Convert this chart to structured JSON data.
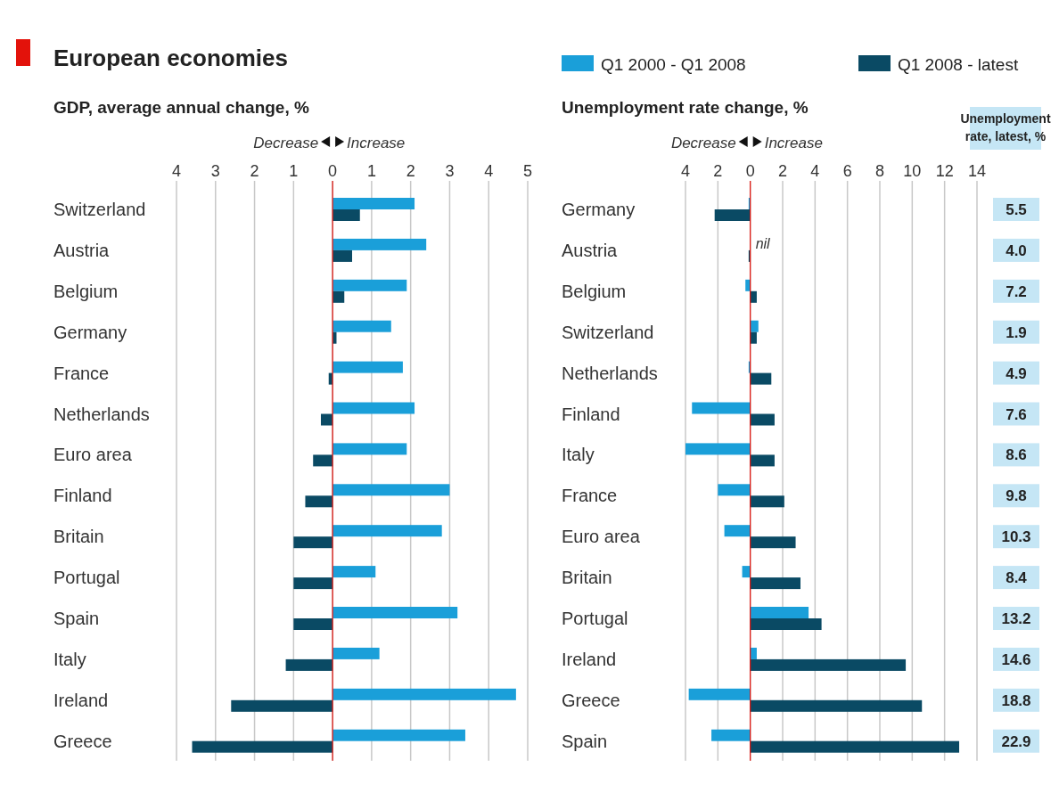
{
  "chart_data": [
    {
      "type": "bar",
      "orientation": "horizontal",
      "title": "European economies",
      "subtitle": "GDP, average annual change, %",
      "categories": [
        "Switzerland",
        "Austria",
        "Belgium",
        "Germany",
        "France",
        "Netherlands",
        "Euro area",
        "Finland",
        "Britain",
        "Portugal",
        "Spain",
        "Italy",
        "Ireland",
        "Greece"
      ],
      "series": [
        {
          "color": "#1a9fd9",
          "values": [
            2.1,
            2.4,
            1.9,
            1.5,
            1.8,
            2.1,
            1.9,
            3.0,
            2.8,
            1.1,
            3.2,
            1.2,
            4.7,
            3.4
          ]
        },
        {
          "color": "#0a4a64",
          "values": [
            0.7,
            0.5,
            0.3,
            0.1,
            -0.1,
            -0.3,
            -0.5,
            -0.7,
            -1.0,
            -1.0,
            -1.0,
            -1.2,
            -2.6,
            -3.6
          ]
        }
      ],
      "xlim": [
        -4,
        5
      ],
      "xticks": [
        {
          "value": -4,
          "label": "4"
        },
        {
          "value": -3,
          "label": "3"
        },
        {
          "value": -2,
          "label": "2"
        },
        {
          "value": -1,
          "label": "1"
        },
        0,
        1,
        2,
        3,
        4,
        5
      ],
      "grid": "x",
      "ref_lines": [
        {
          "axis": "x",
          "value": 0,
          "color": "#e3120b"
        }
      ],
      "annotations": [
        "Decrease",
        "Increase"
      ]
    },
    {
      "type": "bar",
      "orientation": "horizontal",
      "title": "Unemployment rate change, %",
      "categories": [
        "Germany",
        "Austria",
        "Belgium",
        "Switzerland",
        "Netherlands",
        "Finland",
        "Italy",
        "France",
        "Euro area",
        "Britain",
        "Portugal",
        "Ireland",
        "Greece",
        "Spain"
      ],
      "series": [
        {
          "name": "Q1 2000 - Q1 2008",
          "color": "#1a9fd9",
          "values": [
            -0.1,
            0,
            -0.3,
            0.5,
            -0.1,
            -3.6,
            -4.0,
            -2.0,
            -1.6,
            -0.5,
            3.6,
            0.4,
            -3.8,
            -2.4
          ]
        },
        {
          "name": "Q1 2008 - latest",
          "color": "#0a4a64",
          "values": [
            -2.2,
            -0.1,
            0.4,
            0.4,
            1.3,
            1.5,
            1.5,
            2.1,
            2.8,
            3.1,
            4.4,
            9.6,
            10.6,
            12.9
          ]
        }
      ],
      "xlim": [
        -4,
        14
      ],
      "xticks": [
        {
          "value": -4,
          "label": "4"
        },
        {
          "value": -2,
          "label": "2"
        },
        0,
        2,
        4,
        6,
        8,
        10,
        12,
        14
      ],
      "grid": "x",
      "legend": "top",
      "ref_lines": [
        {
          "axis": "x",
          "value": 0,
          "color": "#e3120b"
        }
      ],
      "annotations": [
        "Decrease",
        "Increase",
        {
          "text": "nil",
          "x": 0,
          "y": "Austria"
        }
      ]
    },
    {
      "type": "other",
      "title": "Unemployment rate, latest, %",
      "value_labels": [
        "5.5",
        "4.0",
        "7.2",
        "1.9",
        "4.9",
        "7.6",
        "8.6",
        "9.8",
        "10.3",
        "8.4",
        "13.2",
        "14.6",
        "18.8",
        "22.9"
      ],
      "color": "#c5e6f5"
    }
  ]
}
